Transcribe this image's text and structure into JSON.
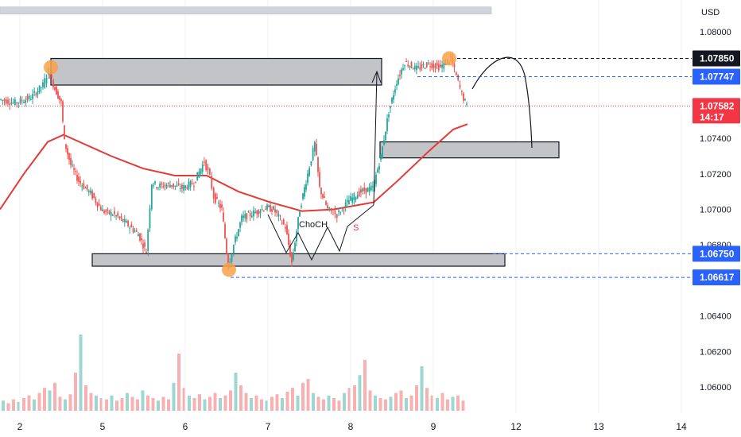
{
  "chart_data": {
    "type": "candlestick",
    "symbol": "",
    "currency_label": "USD",
    "x_ticks": [
      "2",
      "5",
      "6",
      "7",
      "8",
      "9",
      "12",
      "13",
      "14"
    ],
    "y_ticks": [
      "1.08000",
      "1.07400",
      "1.07200",
      "1.07000",
      "1.06800",
      "1.06400",
      "1.06200",
      "1.06000"
    ],
    "ylim": [
      1.059,
      1.0815
    ],
    "price_labels": [
      {
        "text": "1.07850",
        "value": 1.0785,
        "style": "dark",
        "line": "dashed-black"
      },
      {
        "text": "1.07747",
        "value": 1.07747,
        "style": "blue",
        "line": "dashed-blue"
      },
      {
        "text": "1.07582",
        "value": 1.07582,
        "style": "red",
        "subtext": "14:17",
        "line": "dotted-red"
      },
      {
        "text": "1.06750",
        "value": 1.0675,
        "style": "blue",
        "line": "dashed-blue"
      },
      {
        "text": "1.06617",
        "value": 1.06617,
        "style": "blue",
        "line": "dashed-blue"
      }
    ],
    "annotations": {
      "choch_label": "ChoCH",
      "s_label": "S"
    },
    "zones": [
      {
        "name": "supply-zone",
        "y_top": 1.0785,
        "y_bottom": 1.077
      },
      {
        "name": "demand-zone-upper",
        "y_top": 1.0738,
        "y_bottom": 1.0729
      },
      {
        "name": "demand-zone-lower",
        "y_top": 1.0675,
        "y_bottom": 1.0668
      },
      {
        "name": "top-band",
        "y_top": 1.0814,
        "y_bottom": 1.081
      }
    ],
    "moving_average": [
      [
        0,
        1.07
      ],
      [
        30,
        1.072
      ],
      [
        60,
        1.0738
      ],
      [
        80,
        1.0742
      ],
      [
        100,
        1.0738
      ],
      [
        140,
        1.073
      ],
      [
        180,
        1.0723
      ],
      [
        220,
        1.0719
      ],
      [
        260,
        1.0719
      ],
      [
        300,
        1.071
      ],
      [
        340,
        1.0704
      ],
      [
        380,
        1.0699
      ],
      [
        420,
        1.07
      ],
      [
        470,
        1.0704
      ],
      [
        500,
        1.0716
      ],
      [
        540,
        1.0733
      ],
      [
        570,
        1.0745
      ],
      [
        588,
        1.0748
      ]
    ],
    "price_path": [
      [
        0,
        1.0762
      ],
      [
        20,
        1.076
      ],
      [
        40,
        1.0763
      ],
      [
        55,
        1.077
      ],
      [
        62,
        1.0778
      ],
      [
        70,
        1.0768
      ],
      [
        78,
        1.076
      ],
      [
        82,
        1.0738
      ],
      [
        90,
        1.0725
      ],
      [
        100,
        1.0716
      ],
      [
        115,
        1.0709
      ],
      [
        130,
        1.0699
      ],
      [
        145,
        1.0697
      ],
      [
        160,
        1.0692
      ],
      [
        175,
        1.0686
      ],
      [
        185,
        1.0676
      ],
      [
        192,
        1.0715
      ],
      [
        200,
        1.0713
      ],
      [
        215,
        1.0714
      ],
      [
        230,
        1.0712
      ],
      [
        245,
        1.0715
      ],
      [
        258,
        1.0727
      ],
      [
        265,
        1.0718
      ],
      [
        270,
        1.0707
      ],
      [
        280,
        1.07
      ],
      [
        288,
        1.0668
      ],
      [
        295,
        1.068
      ],
      [
        305,
        1.0695
      ],
      [
        320,
        1.0698
      ],
      [
        335,
        1.0701
      ],
      [
        345,
        1.07
      ],
      [
        360,
        1.069
      ],
      [
        368,
        1.067
      ],
      [
        378,
        1.07
      ],
      [
        388,
        1.072
      ],
      [
        397,
        1.0737
      ],
      [
        403,
        1.0712
      ],
      [
        413,
        1.07
      ],
      [
        425,
        1.0697
      ],
      [
        440,
        1.0705
      ],
      [
        455,
        1.071
      ],
      [
        470,
        1.0712
      ],
      [
        480,
        1.073
      ],
      [
        490,
        1.0755
      ],
      [
        500,
        1.0772
      ],
      [
        510,
        1.0783
      ],
      [
        525,
        1.0779
      ],
      [
        540,
        1.0782
      ],
      [
        555,
        1.078
      ],
      [
        568,
        1.0785
      ],
      [
        575,
        1.0775
      ],
      [
        582,
        1.0765
      ],
      [
        588,
        1.0758
      ]
    ],
    "volume": [
      8,
      6,
      9,
      7,
      10,
      12,
      9,
      14,
      18,
      16,
      22,
      11,
      9,
      13,
      30,
      60,
      20,
      14,
      12,
      10,
      9,
      12,
      8,
      10,
      14,
      11,
      9,
      16,
      12,
      10,
      8,
      11,
      9,
      22,
      45,
      18,
      12,
      10,
      13,
      9,
      11,
      14,
      10,
      12,
      16,
      30,
      20,
      14,
      10,
      12,
      9,
      8,
      11,
      13,
      10,
      15,
      18,
      12,
      22,
      25,
      14,
      11,
      9,
      12,
      10,
      8,
      14,
      18,
      20,
      28,
      40,
      16,
      12,
      10,
      9,
      11,
      14,
      16,
      10,
      12,
      20,
      35,
      18,
      12,
      10,
      14,
      9,
      11,
      12,
      8
    ]
  }
}
